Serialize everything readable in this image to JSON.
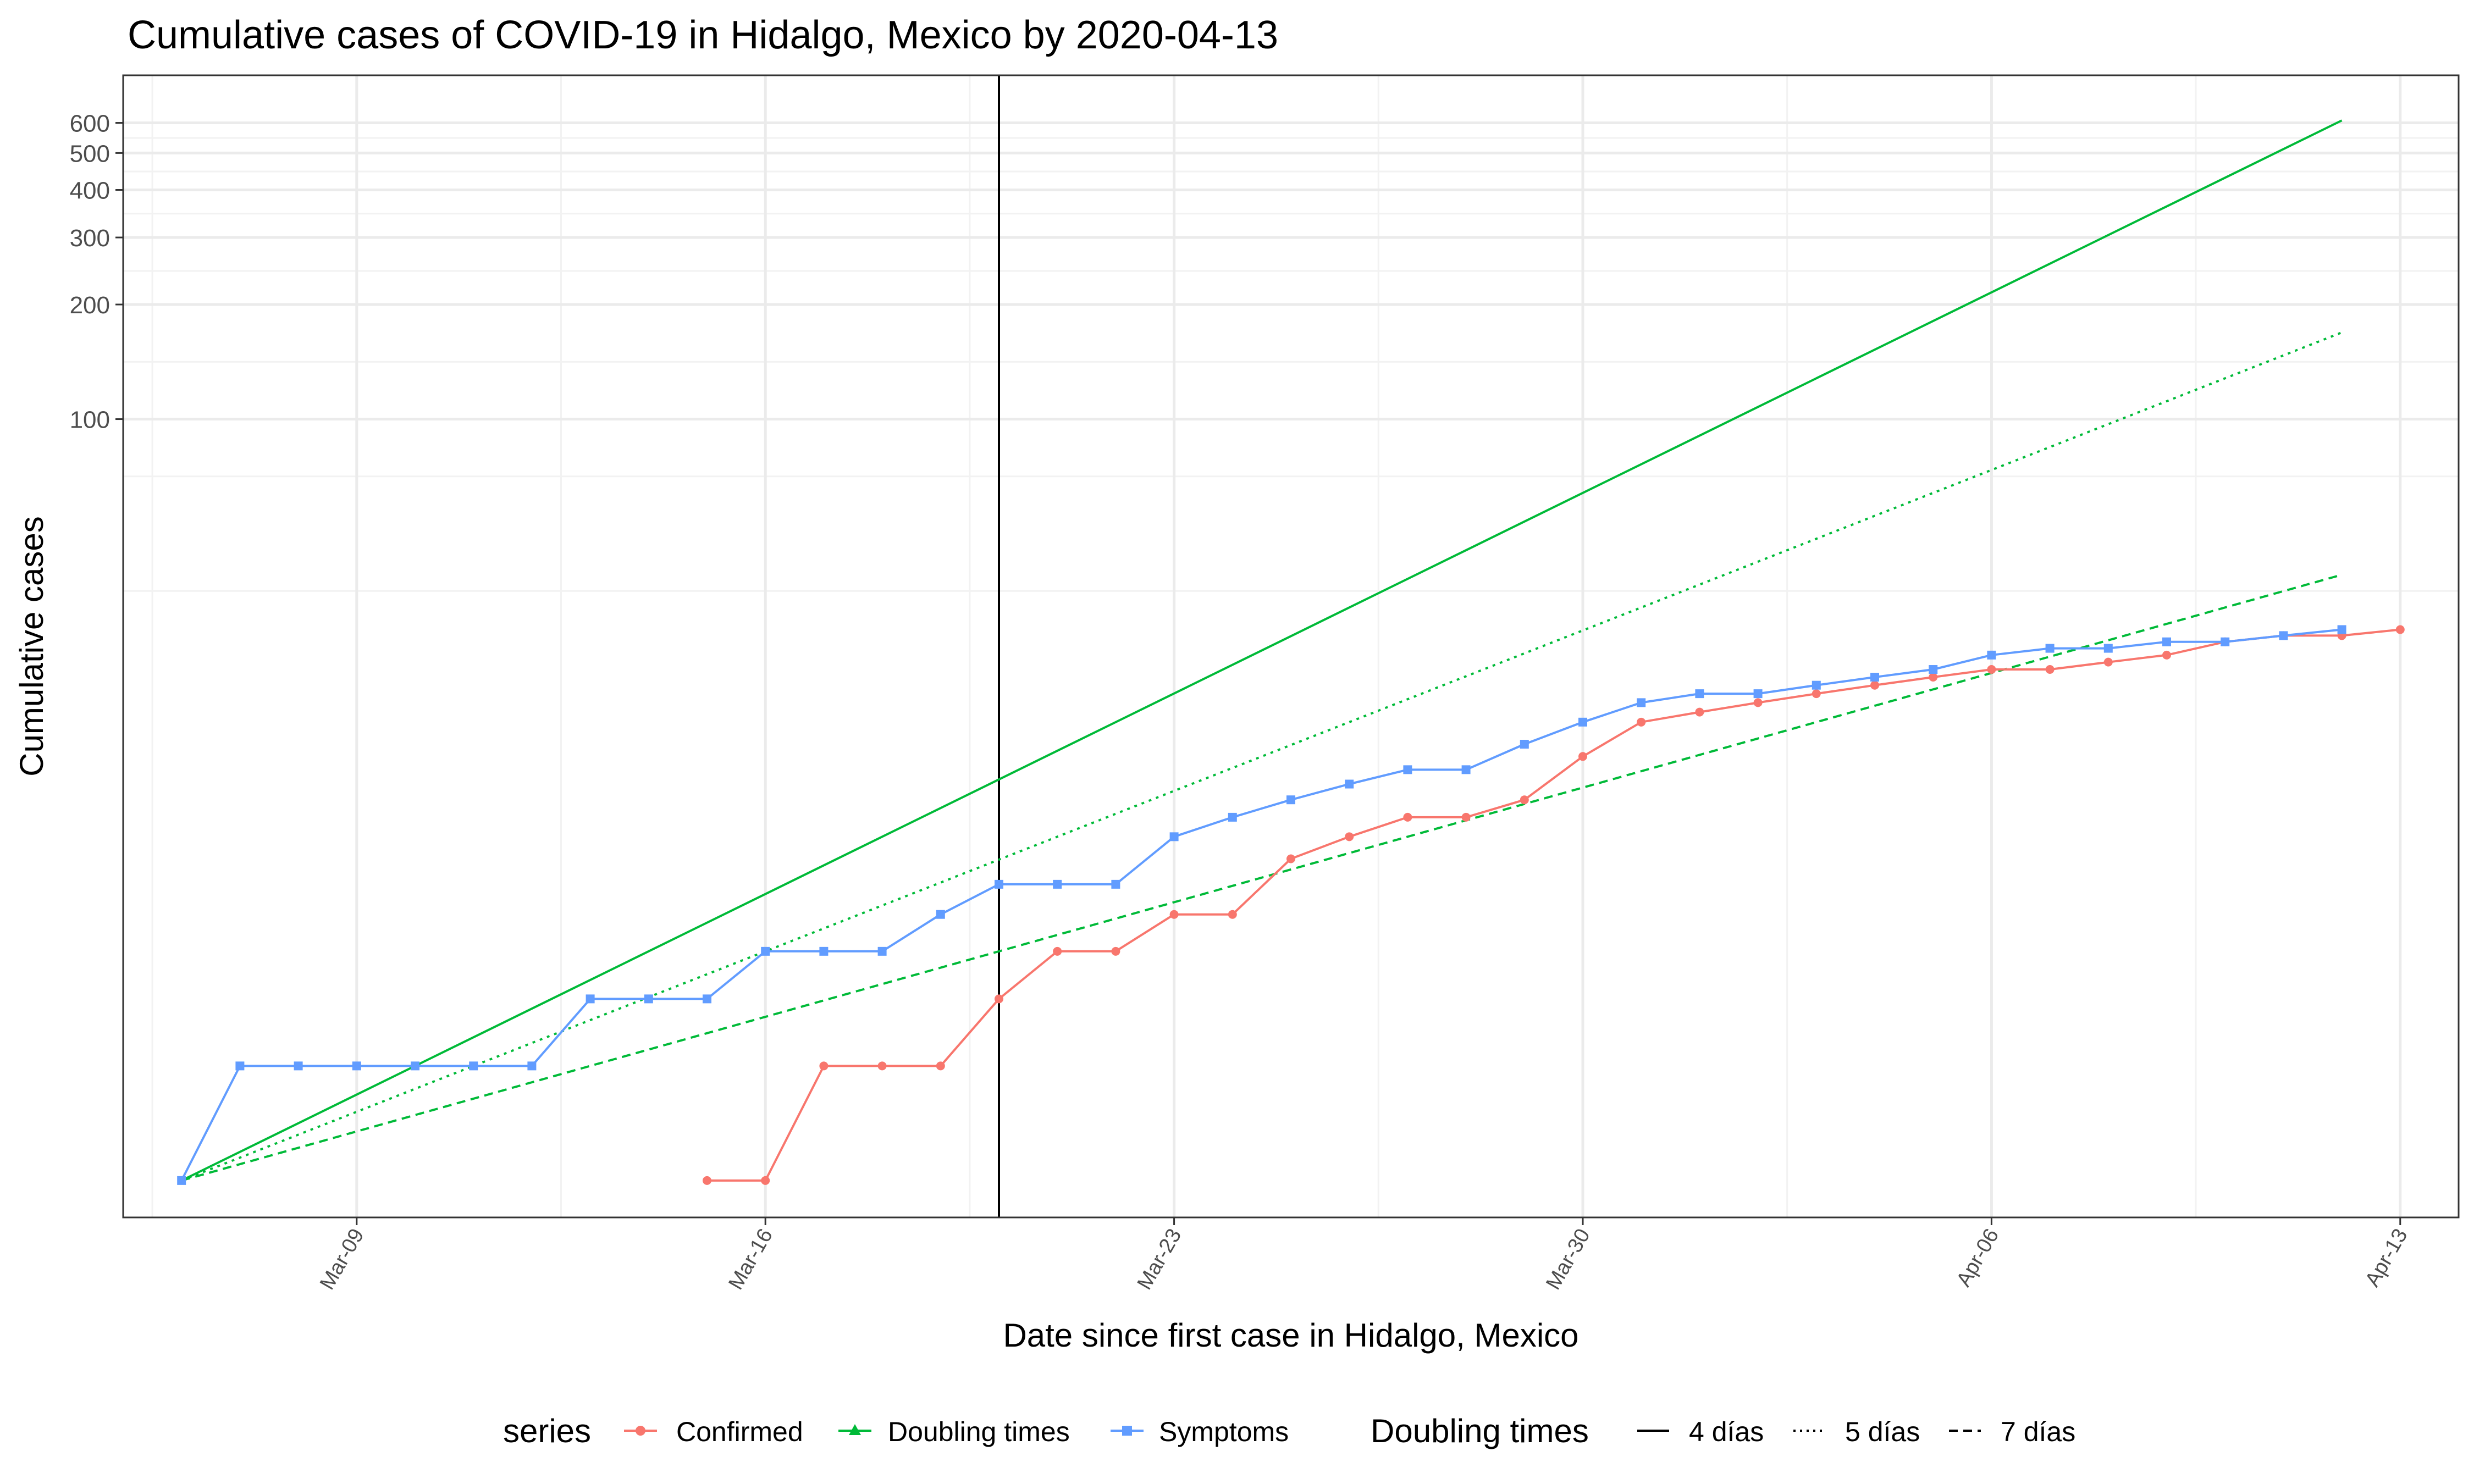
{
  "chart_data": {
    "type": "line",
    "title": "Cumulative cases of COVID-19 in Hidalgo, Mexico by 2020-04-13",
    "xlabel": "Date since first case in Hidalgo, Mexico",
    "ylabel": "Cumulative cases",
    "x_scale": "date",
    "y_scale": "log10",
    "x_range": [
      "2020-03-05",
      "2020-04-14"
    ],
    "y_range": [
      0.8,
      800
    ],
    "x_ticks": [
      {
        "date": "2020-03-09",
        "label": "Mar-09"
      },
      {
        "date": "2020-03-16",
        "label": "Mar-16"
      },
      {
        "date": "2020-03-23",
        "label": "Mar-23"
      },
      {
        "date": "2020-03-30",
        "label": "Mar-30"
      },
      {
        "date": "2020-04-06",
        "label": "Apr-06"
      },
      {
        "date": "2020-04-13",
        "label": "Apr-13"
      }
    ],
    "y_ticks": [
      {
        "value": 100,
        "label": "100"
      },
      {
        "value": 200,
        "label": "200"
      },
      {
        "value": 300,
        "label": "300"
      },
      {
        "value": 400,
        "label": "400"
      },
      {
        "value": 500,
        "label": "500"
      },
      {
        "value": 600,
        "label": "600"
      }
    ],
    "vline": {
      "date": "2020-03-20"
    },
    "series": [
      {
        "name": "Confirmed",
        "color": "#F8766D",
        "marker": "circle",
        "points": [
          [
            "2020-03-15",
            1
          ],
          [
            "2020-03-16",
            1
          ],
          [
            "2020-03-17",
            2
          ],
          [
            "2020-03-18",
            2
          ],
          [
            "2020-03-19",
            2
          ],
          [
            "2020-03-20",
            3
          ],
          [
            "2020-03-21",
            4
          ],
          [
            "2020-03-22",
            4
          ],
          [
            "2020-03-23",
            5
          ],
          [
            "2020-03-24",
            5
          ],
          [
            "2020-03-25",
            7
          ],
          [
            "2020-03-26",
            8
          ],
          [
            "2020-03-27",
            9
          ],
          [
            "2020-03-28",
            9
          ],
          [
            "2020-03-29",
            10
          ],
          [
            "2020-03-30",
            13
          ],
          [
            "2020-03-31",
            16
          ],
          [
            "2020-04-01",
            17
          ],
          [
            "2020-04-02",
            18
          ],
          [
            "2020-04-03",
            19
          ],
          [
            "2020-04-04",
            20
          ],
          [
            "2020-04-05",
            21
          ],
          [
            "2020-04-06",
            22
          ],
          [
            "2020-04-07",
            22
          ],
          [
            "2020-04-08",
            23
          ],
          [
            "2020-04-09",
            24
          ],
          [
            "2020-04-10",
            26
          ],
          [
            "2020-04-11",
            27
          ],
          [
            "2020-04-12",
            27
          ],
          [
            "2020-04-13",
            28
          ]
        ]
      },
      {
        "name": "Symptoms",
        "color": "#619CFF",
        "marker": "square",
        "points": [
          [
            "2020-03-06",
            1
          ],
          [
            "2020-03-07",
            2
          ],
          [
            "2020-03-08",
            2
          ],
          [
            "2020-03-09",
            2
          ],
          [
            "2020-03-10",
            2
          ],
          [
            "2020-03-11",
            2
          ],
          [
            "2020-03-12",
            2
          ],
          [
            "2020-03-13",
            3
          ],
          [
            "2020-03-14",
            3
          ],
          [
            "2020-03-15",
            3
          ],
          [
            "2020-03-16",
            4
          ],
          [
            "2020-03-17",
            4
          ],
          [
            "2020-03-18",
            4
          ],
          [
            "2020-03-19",
            5
          ],
          [
            "2020-03-20",
            6
          ],
          [
            "2020-03-21",
            6
          ],
          [
            "2020-03-22",
            6
          ],
          [
            "2020-03-23",
            8
          ],
          [
            "2020-03-24",
            9
          ],
          [
            "2020-03-25",
            10
          ],
          [
            "2020-03-26",
            11
          ],
          [
            "2020-03-27",
            12
          ],
          [
            "2020-03-28",
            12
          ],
          [
            "2020-03-29",
            14
          ],
          [
            "2020-03-30",
            16
          ],
          [
            "2020-03-31",
            18
          ],
          [
            "2020-04-01",
            19
          ],
          [
            "2020-04-02",
            19
          ],
          [
            "2020-04-03",
            20
          ],
          [
            "2020-04-04",
            21
          ],
          [
            "2020-04-05",
            22
          ],
          [
            "2020-04-06",
            24
          ],
          [
            "2020-04-07",
            25
          ],
          [
            "2020-04-08",
            25
          ],
          [
            "2020-04-09",
            26
          ],
          [
            "2020-04-10",
            26
          ],
          [
            "2020-04-11",
            27
          ],
          [
            "2020-04-12",
            28
          ]
        ]
      }
    ],
    "doubling_lines": {
      "series_name": "Doubling times",
      "color": "#00BA38",
      "start_date": "2020-03-06",
      "end_date": "2020-04-12",
      "start_value": 1,
      "lines": [
        {
          "label": "4 días",
          "days": 4,
          "dash": "solid"
        },
        {
          "label": "5 días",
          "days": 5,
          "dash": "dotted"
        },
        {
          "label": "7 días",
          "days": 7,
          "dash": "dashed"
        }
      ]
    },
    "legend": {
      "position": "bottom",
      "series_title": "series",
      "series_items": [
        "Confirmed",
        "Doubling times",
        "Symptoms"
      ],
      "linetype_title": "Doubling times",
      "linetype_items": [
        "4 días",
        "5 días",
        "7 días"
      ]
    }
  }
}
